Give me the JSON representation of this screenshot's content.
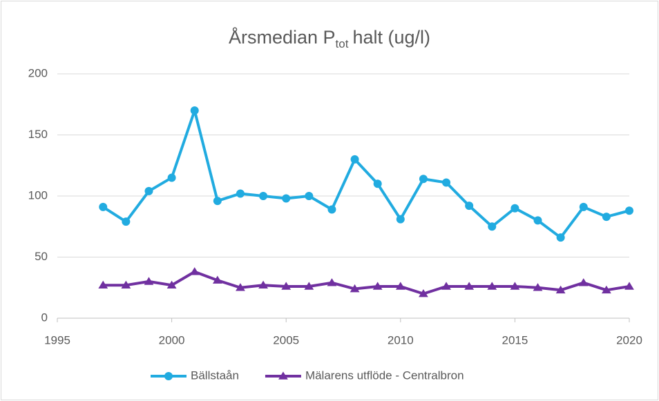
{
  "chart_data": {
    "type": "line",
    "title": {
      "text": "Årsmedian P",
      "subscript": "tot",
      "rest": "halt (ug/l)"
    },
    "x": [
      1997,
      1998,
      1999,
      2000,
      2001,
      2002,
      2003,
      2004,
      2005,
      2006,
      2007,
      2008,
      2009,
      2010,
      2011,
      2012,
      2013,
      2014,
      2015,
      2016,
      2017,
      2018,
      2019,
      2020
    ],
    "series": [
      {
        "name": "Bällstaån",
        "color": "#21abe0",
        "marker": "circle",
        "values": [
          91,
          79,
          104,
          115,
          170,
          96,
          102,
          100,
          98,
          100,
          89,
          130,
          110,
          81,
          114,
          111,
          92,
          75,
          90,
          80,
          66,
          91,
          83,
          88
        ]
      },
      {
        "name": "Mälarens utflöde - Centralbron",
        "color": "#7030a0",
        "marker": "triangle",
        "values": [
          27,
          27,
          30,
          27,
          38,
          31,
          25,
          27,
          26,
          26,
          29,
          24,
          26,
          26,
          20,
          26,
          26,
          26,
          26,
          25,
          23,
          29,
          23,
          26
        ]
      }
    ],
    "xlim": [
      1995,
      2020
    ],
    "xticks": [
      1995,
      2000,
      2005,
      2010,
      2015,
      2020
    ],
    "ylim": [
      0,
      200
    ],
    "yticks": [
      0,
      50,
      100,
      150,
      200
    ],
    "grid": true,
    "legend": "bottom"
  }
}
